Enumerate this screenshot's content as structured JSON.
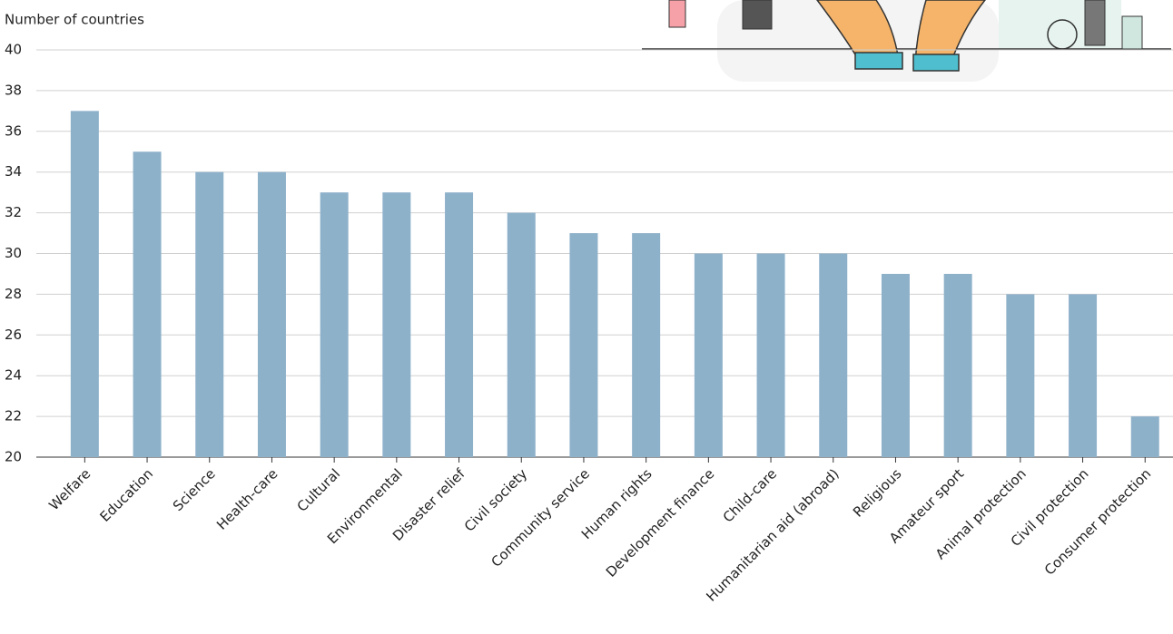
{
  "chart_data": {
    "type": "bar",
    "y_label": "Number of countries",
    "categories": [
      "Welfare",
      "Education",
      "Science",
      "Health-care",
      "Cultural",
      "Environmental",
      "Disaster relief",
      "Civil society",
      "Community service",
      "Human rights",
      "Development finance",
      "Child-care",
      "Humanitarian aid (abroad)",
      "Religious",
      "Amateur sport",
      "Animal protection",
      "Civil protection",
      "Consumer protection"
    ],
    "values": [
      37,
      35,
      34,
      34,
      33,
      33,
      33,
      32,
      31,
      31,
      30,
      30,
      30,
      29,
      29,
      28,
      28,
      22
    ],
    "color": "#8eb1ca",
    "ylim": [
      20,
      40
    ],
    "yticks": [
      20,
      22,
      24,
      26,
      28,
      30,
      32,
      34,
      36,
      38,
      40
    ],
    "grid": true
  }
}
